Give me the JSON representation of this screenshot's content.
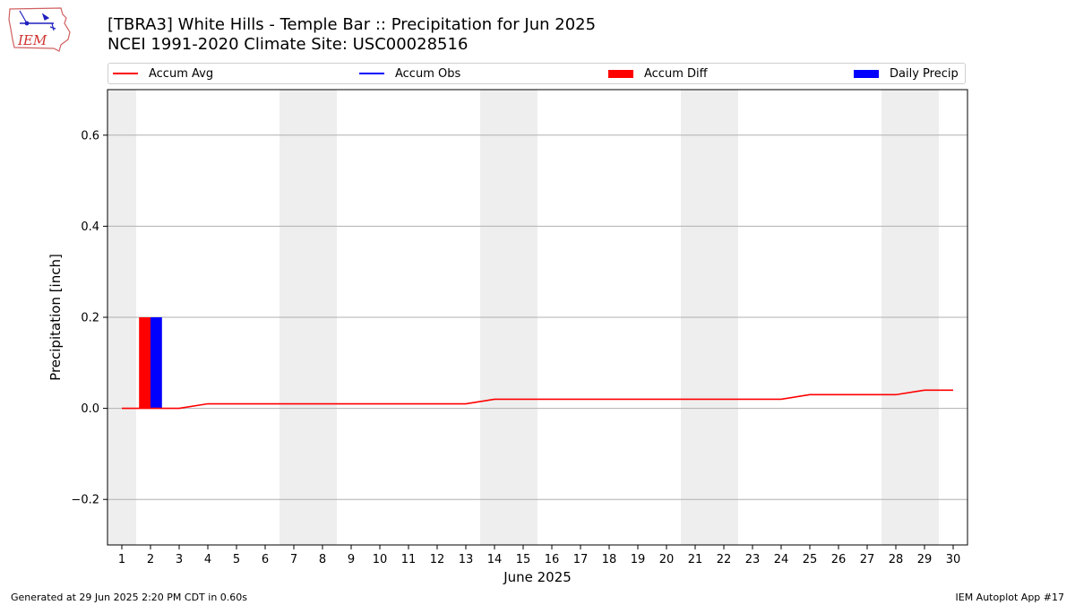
{
  "logo": {
    "text": "IEM"
  },
  "header": {
    "title_line1": "[TBRA3] White Hills - Temple Bar :: Precipitation for Jun 2025",
    "title_line2": "NCEI 1991-2020 Climate Site: USC00028516"
  },
  "legend": {
    "placement": "top",
    "items": [
      {
        "label": "Accum Avg",
        "kind": "line",
        "color": "#ff0000"
      },
      {
        "label": "Accum Obs",
        "kind": "line",
        "color": "#0000ff"
      },
      {
        "label": "Accum Diff",
        "kind": "bar",
        "color": "#ff0000"
      },
      {
        "label": "Daily Precip",
        "kind": "bar",
        "color": "#0000ff"
      }
    ]
  },
  "chart_data": {
    "type": "bar",
    "xlabel": "June 2025",
    "ylabel": "Precipitation [inch]",
    "ylim": [
      -0.3,
      0.7
    ],
    "yticks": [
      -0.2,
      0.0,
      0.2,
      0.4,
      0.6
    ],
    "ytick_labels": [
      "−0.2",
      "0.0",
      "0.2",
      "0.4",
      "0.6"
    ],
    "x": [
      1,
      2,
      3,
      4,
      5,
      6,
      7,
      8,
      9,
      10,
      11,
      12,
      13,
      14,
      15,
      16,
      17,
      18,
      19,
      20,
      21,
      22,
      23,
      24,
      25,
      26,
      27,
      28,
      29,
      30
    ],
    "xtick_labels": [
      "1",
      "2",
      "3",
      "4",
      "5",
      "6",
      "7",
      "8",
      "9",
      "10",
      "11",
      "12",
      "13",
      "14",
      "15",
      "16",
      "17",
      "18",
      "19",
      "20",
      "21",
      "22",
      "23",
      "24",
      "25",
      "26",
      "27",
      "28",
      "29",
      "30"
    ],
    "grid": "horizontal",
    "weekend_shading": [
      [
        1,
        1
      ],
      [
        7,
        8
      ],
      [
        14,
        15
      ],
      [
        21,
        22
      ],
      [
        28,
        29
      ]
    ],
    "weekend_color": "#eeeeee",
    "series": [
      {
        "name": "Accum Avg",
        "kind": "line",
        "color": "#ff0000",
        "values": [
          0.0,
          0.0,
          0.0,
          0.01,
          0.01,
          0.01,
          0.01,
          0.01,
          0.01,
          0.01,
          0.01,
          0.01,
          0.01,
          0.02,
          0.02,
          0.02,
          0.02,
          0.02,
          0.02,
          0.02,
          0.02,
          0.02,
          0.02,
          0.02,
          0.03,
          0.03,
          0.03,
          0.03,
          0.04,
          0.04
        ]
      },
      {
        "name": "Accum Diff",
        "kind": "bar",
        "color": "#ff0000",
        "points": [
          {
            "x": 2,
            "value": 0.2
          }
        ]
      },
      {
        "name": "Daily Precip",
        "kind": "bar",
        "color": "#0000ff",
        "points": [
          {
            "x": 2,
            "value": 0.2
          }
        ]
      }
    ]
  },
  "footer": {
    "left": "Generated at 29 Jun 2025 2:20 PM CDT in 0.60s",
    "right": "IEM Autoplot App #17"
  }
}
